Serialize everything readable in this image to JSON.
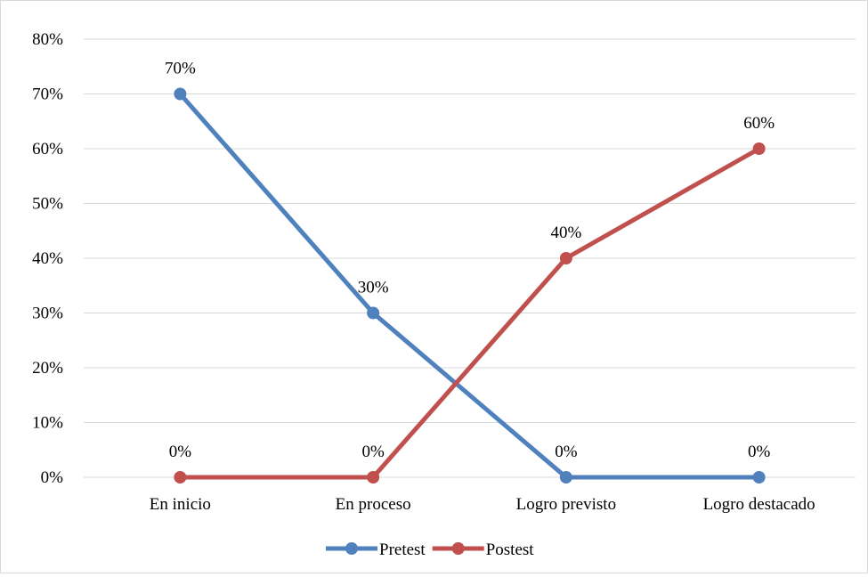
{
  "chart_data": {
    "type": "line",
    "categories": [
      "En inicio",
      "En proceso",
      "Logro previsto",
      "Logro destacado"
    ],
    "series": [
      {
        "name": "Pretest",
        "values": [
          70,
          30,
          0,
          0
        ],
        "labels": [
          "70%",
          "30%",
          "0%",
          "0%"
        ],
        "color": "#4f81bd"
      },
      {
        "name": "Postest",
        "values": [
          0,
          0,
          40,
          60
        ],
        "labels": [
          "0%",
          "0%",
          "40%",
          "60%"
        ],
        "color": "#c0504d"
      }
    ],
    "y_ticks": [
      "0%",
      "10%",
      "20%",
      "30%",
      "40%",
      "50%",
      "60%",
      "70%",
      "80%"
    ],
    "ylim": [
      0,
      80
    ],
    "grid": true,
    "legend_position": "bottom",
    "markers": true
  }
}
